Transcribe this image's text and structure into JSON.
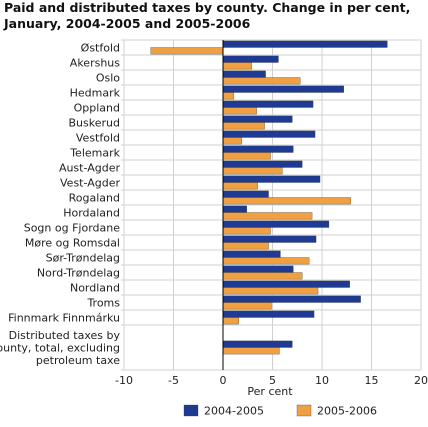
{
  "chart_data": {
    "type": "bar",
    "orientation": "horizontal",
    "title": "Paid and distributed taxes by county. Change in per cent, January, 2004-2005 and 2005-2006",
    "xlabel": "Per cent",
    "ylabel": "",
    "xlim": [
      -10,
      20
    ],
    "xticks": [
      -10,
      -5,
      0,
      5,
      10,
      15,
      20
    ],
    "grid": "vertical",
    "legend_position": "bottom",
    "categories": [
      [
        "Østfold"
      ],
      [
        "Akershus"
      ],
      [
        "Oslo"
      ],
      [
        "Hedmark"
      ],
      [
        "Oppland"
      ],
      [
        "Buskerud"
      ],
      [
        "Vestfold"
      ],
      [
        "Telemark"
      ],
      [
        "Aust-Agder"
      ],
      [
        "Vest-Agder"
      ],
      [
        "Rogaland"
      ],
      [
        "Hordaland"
      ],
      [
        "Sogn og Fjordane"
      ],
      [
        "Møre og Romsdal"
      ],
      [
        "Sør-Trøndelag"
      ],
      [
        "Nord-Trøndelag"
      ],
      [
        "Nordland"
      ],
      [
        "Troms"
      ],
      [
        "Finnmark Finnmárku"
      ],
      [
        "Distributed taxes by",
        "county, total, excluding",
        "petroleum taxe"
      ]
    ],
    "series": [
      {
        "name": "2004-2005",
        "color": "#1f3a93",
        "values": [
          16.6,
          5.6,
          4.3,
          12.2,
          9.1,
          7.0,
          9.3,
          7.1,
          8.0,
          9.8,
          4.6,
          2.4,
          10.7,
          9.4,
          5.8,
          7.1,
          12.8,
          13.9,
          9.2,
          7.0
        ]
      },
      {
        "name": "2005-2006",
        "color": "#f0a040",
        "values": [
          -7.3,
          2.9,
          7.8,
          1.1,
          3.4,
          4.2,
          1.9,
          4.8,
          6.0,
          3.5,
          12.9,
          9.0,
          4.8,
          4.6,
          8.7,
          8.0,
          9.6,
          4.9,
          1.6,
          5.7
        ]
      }
    ]
  }
}
